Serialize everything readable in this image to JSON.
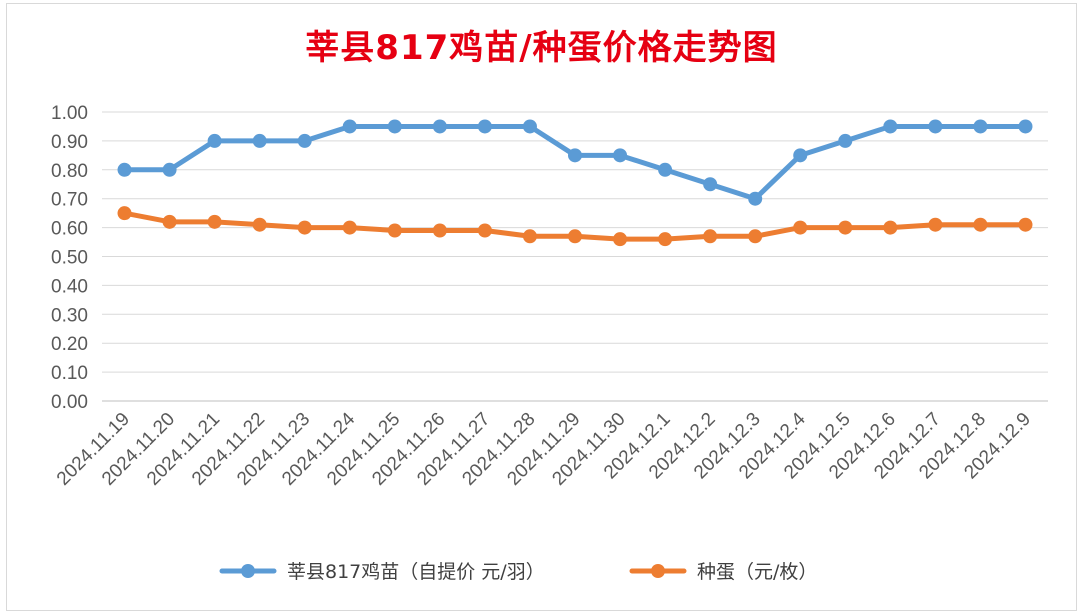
{
  "chart_data": {
    "type": "line",
    "title": "莘县817鸡苗/种蛋价格走势图",
    "xlabel": "",
    "ylabel": "",
    "ylim": [
      0,
      1.0
    ],
    "y_ticks": [
      "0.00",
      "0.10",
      "0.20",
      "0.30",
      "0.40",
      "0.50",
      "0.60",
      "0.70",
      "0.80",
      "0.90",
      "1.00"
    ],
    "grid": true,
    "legend_position": "bottom",
    "categories": [
      "2024.11.19",
      "2024.11.20",
      "2024.11.21",
      "2024.11.22",
      "2024.11.23",
      "2024.11.24",
      "2024.11.25",
      "2024.11.26",
      "2024.11.27",
      "2024.11.28",
      "2024.11.29",
      "2024.11.30",
      "2024.12.1",
      "2024.12.2",
      "2024.12.3",
      "2024.12.4",
      "2024.12.5",
      "2024.12.6",
      "2024.12.7",
      "2024.12.8",
      "2024.12.9"
    ],
    "series": [
      {
        "name": "莘县817鸡苗（自提价 元/羽）",
        "color": "#5b9bd5",
        "values": [
          0.8,
          0.8,
          0.9,
          0.9,
          0.9,
          0.95,
          0.95,
          0.95,
          0.95,
          0.95,
          0.85,
          0.85,
          0.8,
          0.75,
          0.7,
          0.85,
          0.9,
          0.95,
          0.95,
          0.95,
          0.95
        ]
      },
      {
        "name": "种蛋（元/枚）",
        "color": "#ed7d31",
        "values": [
          0.65,
          0.62,
          0.62,
          0.61,
          0.6,
          0.6,
          0.59,
          0.59,
          0.59,
          0.57,
          0.57,
          0.56,
          0.56,
          0.57,
          0.57,
          0.6,
          0.6,
          0.6,
          0.61,
          0.61,
          0.61
        ]
      }
    ]
  }
}
